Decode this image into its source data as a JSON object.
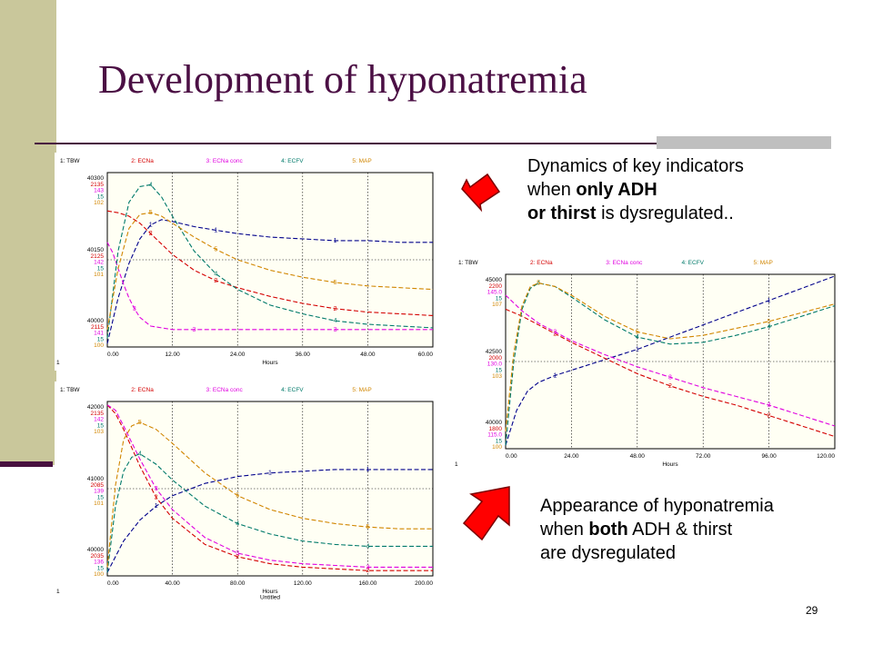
{
  "slide": {
    "title": "Development of hyponatremia",
    "page_number": "29",
    "caption_top": {
      "l1": "Dynamics of key indicators",
      "l2a": "when ",
      "l2b": "only ADH",
      "l3a": "or thirst",
      "l3b": " is dysregulated.."
    },
    "caption_bottom": {
      "l1": "Appearance of hyponatremia",
      "l2a": "when ",
      "l2b": "both",
      "l2c": " ADH & thirst",
      "l3": "are dysregulated"
    },
    "colors": {
      "side_bar": "#c9c79b",
      "title": "#4b0f44",
      "arrow": "#ff0000"
    },
    "icons": [
      "arrow-down-left-icon",
      "arrow-up-right-icon"
    ]
  },
  "chart_data": [
    {
      "type": "line",
      "legend": [
        "1: TBW",
        "2: ECNa",
        "3: ECNa conc",
        "4: ECFV",
        "5: MAP"
      ],
      "ylabels_top": [
        "40300",
        "2135",
        "143",
        "15",
        "102"
      ],
      "ylabels_mid": [
        "40150",
        "2125",
        "142",
        "15",
        "101"
      ],
      "ylabels_bot": [
        "40000",
        "2115",
        "141",
        "15",
        "100"
      ],
      "x_ticks": [
        "0.00",
        "12.00",
        "24.00",
        "36.00",
        "48.00",
        "60.00"
      ],
      "xlabel": "Hours",
      "page": "1",
      "xlim": [
        0,
        60
      ],
      "series": [
        {
          "marker": "1",
          "color": "#00008b",
          "x": [
            0,
            2,
            4,
            6,
            8,
            10,
            12,
            16,
            20,
            24,
            30,
            36,
            42,
            48,
            54,
            60
          ],
          "y": [
            0.02,
            0.28,
            0.48,
            0.62,
            0.7,
            0.73,
            0.72,
            0.69,
            0.67,
            0.65,
            0.63,
            0.62,
            0.61,
            0.61,
            0.6,
            0.6
          ]
        },
        {
          "marker": "2",
          "color": "#d40000",
          "x": [
            0,
            2,
            4,
            6,
            8,
            10,
            12,
            16,
            20,
            24,
            30,
            36,
            42,
            48,
            54,
            60
          ],
          "y": [
            0.78,
            0.77,
            0.75,
            0.71,
            0.65,
            0.59,
            0.53,
            0.44,
            0.38,
            0.34,
            0.29,
            0.25,
            0.22,
            0.2,
            0.19,
            0.18
          ]
        },
        {
          "marker": "3",
          "color": "#e000e0",
          "x": [
            0,
            1,
            2,
            3,
            4,
            5,
            6,
            8,
            10,
            12,
            16,
            20,
            24,
            30,
            36,
            42,
            48,
            54,
            60
          ],
          "y": [
            0.6,
            0.54,
            0.45,
            0.36,
            0.28,
            0.22,
            0.17,
            0.12,
            0.11,
            0.1,
            0.1,
            0.1,
            0.1,
            0.1,
            0.1,
            0.1,
            0.1,
            0.1,
            0.1
          ]
        },
        {
          "marker": "4",
          "color": "#007a6a",
          "x": [
            0,
            2,
            4,
            6,
            8,
            10,
            12,
            16,
            20,
            24,
            30,
            36,
            42,
            48,
            54,
            60
          ],
          "y": [
            0.05,
            0.55,
            0.83,
            0.92,
            0.93,
            0.86,
            0.75,
            0.55,
            0.42,
            0.33,
            0.24,
            0.19,
            0.15,
            0.13,
            0.12,
            0.11
          ]
        },
        {
          "marker": "5",
          "color": "#d18600",
          "x": [
            0,
            2,
            4,
            6,
            8,
            10,
            12,
            16,
            20,
            24,
            30,
            36,
            42,
            48,
            54,
            60
          ],
          "y": [
            0.1,
            0.45,
            0.68,
            0.76,
            0.77,
            0.75,
            0.71,
            0.63,
            0.56,
            0.5,
            0.44,
            0.4,
            0.37,
            0.35,
            0.34,
            0.33
          ]
        }
      ]
    },
    {
      "type": "line",
      "legend": [
        "1: TBW",
        "2: ECNa",
        "3: ECNa conc",
        "4: ECFV",
        "5: MAP"
      ],
      "ylabels_top": [
        "45000",
        "2200",
        "145.0",
        "15",
        "107"
      ],
      "ylabels_mid": [
        "42500",
        "2000",
        "130.0",
        "15",
        "103"
      ],
      "ylabels_bot": [
        "40000",
        "1800",
        "115.0",
        "15",
        "100"
      ],
      "x_ticks": [
        "0.00",
        "24.00",
        "48.00",
        "72.00",
        "96.00",
        "120.00"
      ],
      "xlabel": "Hours",
      "page": "1",
      "xlim": [
        0,
        120
      ],
      "series": [
        {
          "marker": "1",
          "color": "#00008b",
          "x": [
            0,
            4,
            8,
            12,
            18,
            24,
            36,
            48,
            60,
            72,
            84,
            96,
            108,
            120
          ],
          "y": [
            0.02,
            0.22,
            0.33,
            0.38,
            0.42,
            0.45,
            0.51,
            0.57,
            0.64,
            0.71,
            0.78,
            0.85,
            0.92,
            0.99
          ]
        },
        {
          "marker": "2",
          "color": "#d40000",
          "x": [
            0,
            6,
            12,
            18,
            24,
            36,
            48,
            60,
            72,
            84,
            96,
            108,
            120
          ],
          "y": [
            0.8,
            0.76,
            0.71,
            0.66,
            0.61,
            0.52,
            0.43,
            0.36,
            0.3,
            0.25,
            0.19,
            0.13,
            0.07
          ]
        },
        {
          "marker": "3",
          "color": "#e000e0",
          "x": [
            0,
            6,
            12,
            18,
            24,
            36,
            48,
            60,
            72,
            84,
            96,
            108,
            120
          ],
          "y": [
            0.88,
            0.79,
            0.72,
            0.67,
            0.62,
            0.54,
            0.47,
            0.41,
            0.35,
            0.3,
            0.25,
            0.19,
            0.13
          ]
        },
        {
          "marker": "4",
          "color": "#007a6a",
          "x": [
            0,
            3,
            6,
            9,
            12,
            18,
            24,
            36,
            48,
            60,
            72,
            84,
            96,
            108,
            120
          ],
          "y": [
            0.02,
            0.5,
            0.8,
            0.92,
            0.95,
            0.93,
            0.87,
            0.74,
            0.64,
            0.6,
            0.61,
            0.65,
            0.7,
            0.76,
            0.82
          ]
        },
        {
          "marker": "5",
          "color": "#d18600",
          "x": [
            0,
            3,
            6,
            9,
            12,
            18,
            24,
            36,
            48,
            60,
            72,
            84,
            96,
            108,
            120
          ],
          "y": [
            0.1,
            0.55,
            0.82,
            0.93,
            0.95,
            0.93,
            0.88,
            0.76,
            0.67,
            0.63,
            0.65,
            0.69,
            0.73,
            0.78,
            0.83
          ]
        }
      ]
    },
    {
      "type": "line",
      "legend": [
        "1: TBW",
        "2: ECNa",
        "3: ECNa conc",
        "4: ECFV",
        "5: MAP"
      ],
      "ylabels_top": [
        "42000",
        "2135",
        "142",
        "15",
        "103"
      ],
      "ylabels_mid": [
        "41000",
        "2085",
        "139",
        "15",
        "101"
      ],
      "ylabels_bot": [
        "40000",
        "2035",
        "136",
        "15",
        "100"
      ],
      "x_ticks": [
        "0.00",
        "40.00",
        "80.00",
        "120.00",
        "160.00",
        "200.00"
      ],
      "xlabel": "Hours",
      "xlabel2": "Untitled",
      "page": "1",
      "xlim": [
        0,
        200
      ],
      "series": [
        {
          "marker": "1",
          "color": "#00008b",
          "x": [
            0,
            10,
            20,
            30,
            40,
            60,
            80,
            100,
            120,
            140,
            160,
            180,
            200
          ],
          "y": [
            0.02,
            0.2,
            0.32,
            0.4,
            0.46,
            0.53,
            0.57,
            0.59,
            0.6,
            0.61,
            0.61,
            0.61,
            0.61
          ]
        },
        {
          "marker": "2",
          "color": "#d40000",
          "x": [
            0,
            5,
            10,
            20,
            30,
            40,
            60,
            80,
            100,
            120,
            140,
            160,
            180,
            200
          ],
          "y": [
            0.98,
            0.93,
            0.84,
            0.63,
            0.45,
            0.33,
            0.18,
            0.11,
            0.07,
            0.05,
            0.04,
            0.03,
            0.03,
            0.03
          ]
        },
        {
          "marker": "3",
          "color": "#e000e0",
          "x": [
            0,
            5,
            10,
            20,
            30,
            40,
            60,
            80,
            100,
            120,
            140,
            160,
            180,
            200
          ],
          "y": [
            0.98,
            0.95,
            0.86,
            0.67,
            0.5,
            0.38,
            0.22,
            0.13,
            0.09,
            0.07,
            0.06,
            0.05,
            0.05,
            0.05
          ]
        },
        {
          "marker": "4",
          "color": "#007a6a",
          "x": [
            0,
            5,
            10,
            15,
            20,
            30,
            40,
            60,
            80,
            100,
            120,
            140,
            160,
            180,
            200
          ],
          "y": [
            0.02,
            0.4,
            0.6,
            0.68,
            0.7,
            0.64,
            0.55,
            0.4,
            0.3,
            0.24,
            0.2,
            0.18,
            0.17,
            0.17,
            0.17
          ]
        },
        {
          "marker": "5",
          "color": "#d18600",
          "x": [
            0,
            5,
            10,
            15,
            20,
            30,
            40,
            60,
            80,
            100,
            120,
            140,
            160,
            180,
            200
          ],
          "y": [
            0.05,
            0.52,
            0.78,
            0.86,
            0.88,
            0.84,
            0.76,
            0.59,
            0.46,
            0.38,
            0.33,
            0.3,
            0.28,
            0.27,
            0.27
          ]
        }
      ]
    }
  ]
}
